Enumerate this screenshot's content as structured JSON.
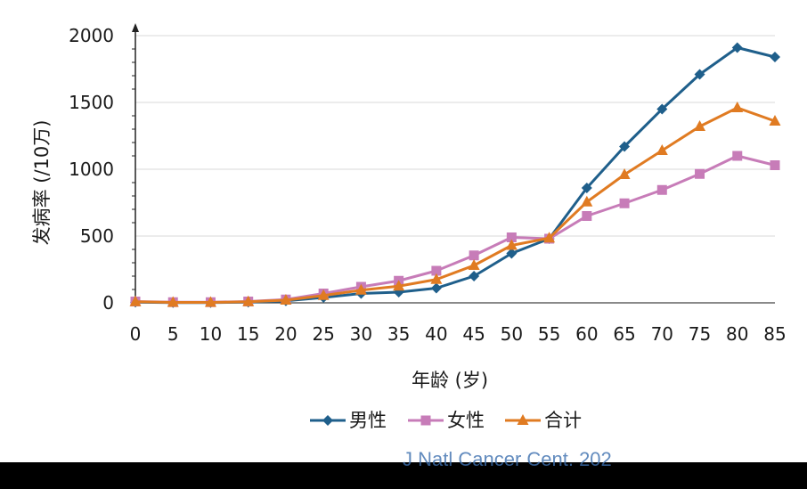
{
  "chart_data": {
    "type": "line",
    "xlabel": "年龄 (岁)",
    "ylabel": "发病率 (/10万)",
    "x": [
      0,
      5,
      10,
      15,
      20,
      25,
      30,
      35,
      40,
      45,
      50,
      55,
      60,
      65,
      70,
      75,
      80,
      85
    ],
    "ylim": [
      0,
      2000
    ],
    "yticks": [
      0,
      500,
      1000,
      1500,
      2000
    ],
    "grid": true,
    "legend_position": "bottom",
    "series": [
      {
        "name": "男性",
        "color": "#1f5f8b",
        "marker": "diamond",
        "values": [
          5,
          2,
          2,
          5,
          15,
          40,
          70,
          80,
          110,
          200,
          370,
          480,
          860,
          1170,
          1450,
          1710,
          1910,
          1840
        ]
      },
      {
        "name": "女性",
        "color": "#c77cb8",
        "marker": "square",
        "values": [
          10,
          5,
          5,
          10,
          25,
          70,
          120,
          165,
          240,
          355,
          490,
          480,
          650,
          745,
          845,
          965,
          1100,
          1030
        ]
      },
      {
        "name": "合计",
        "color": "#e07b22",
        "marker": "triangle",
        "values": [
          8,
          3,
          3,
          8,
          20,
          55,
          95,
          125,
          175,
          280,
          430,
          485,
          755,
          960,
          1140,
          1320,
          1460,
          1360
        ]
      }
    ]
  },
  "watermark": "J Natl Cancer Cent. 202"
}
